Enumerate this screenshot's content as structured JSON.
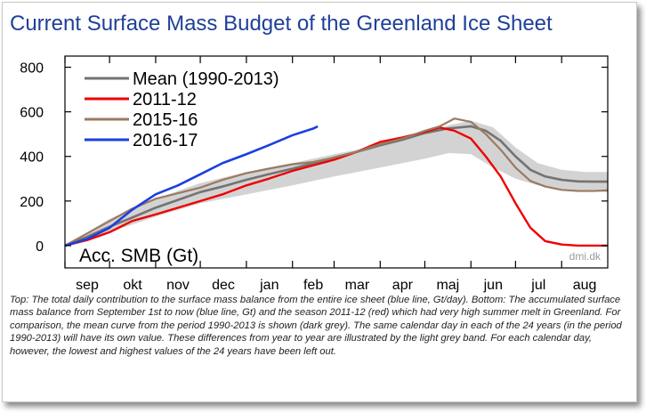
{
  "title": "Current Surface Mass Budget of the Greenland Ice Sheet",
  "caption": "Top: The total daily contribution to the surface mass balance from the entire ice sheet (blue line, Gt/day). Bottom: The accumulated surface mass balance from September 1st to now (blue line, Gt) and the season 2011-12 (red) which had very high summer melt in Greenland. For comparison, the mean curve from the period 1990-2013 is shown (dark grey). The same calendar day in each of the 24 years (in the period 1990-2013) will have its own value. These differences from year to year are illustrated by the light grey band. For each calendar day, however, the lowest and highest values of the 24 years have been left out.",
  "colors": {
    "title": "#1f3f99",
    "mean": "#737373",
    "s2011": "#ee0000",
    "s2015": "#9b7a62",
    "s2016": "#1a3fe0",
    "band": "#d3d3d3"
  },
  "chart_data": {
    "type": "line",
    "ylabel": "Acc. SMB (Gt)",
    "watermark": "dmi.dk",
    "xlim": [
      0,
      365
    ],
    "ylim": [
      -100,
      850
    ],
    "yticks": [
      0,
      200,
      400,
      600,
      800
    ],
    "month_labels": [
      "sep",
      "okt",
      "nov",
      "dec",
      "jan",
      "feb",
      "mar",
      "apr",
      "maj",
      "jun",
      "jul",
      "aug"
    ],
    "month_starts": [
      0,
      30,
      61,
      91,
      122,
      153,
      181,
      212,
      242,
      273,
      303,
      334
    ],
    "legend": [
      "Mean (1990-2013)",
      "2011-12",
      "2015-16",
      "2016-17"
    ],
    "band": {
      "x": [
        0,
        30,
        61,
        91,
        122,
        153,
        181,
        212,
        242,
        258,
        273,
        288,
        303,
        318,
        334,
        350,
        365
      ],
      "lower": [
        0,
        60,
        130,
        190,
        230,
        270,
        310,
        350,
        390,
        415,
        410,
        350,
        300,
        270,
        255,
        245,
        240
      ],
      "upper": [
        0,
        120,
        210,
        280,
        330,
        370,
        410,
        450,
        500,
        540,
        560,
        530,
        440,
        370,
        340,
        330,
        330
      ]
    },
    "series": [
      {
        "name": "Mean (1990-2013)",
        "x": [
          0,
          15,
          30,
          45,
          61,
          76,
          91,
          106,
          122,
          137,
          153,
          167,
          181,
          196,
          212,
          227,
          242,
          257,
          273,
          283,
          293,
          303,
          313,
          323,
          334,
          345,
          356,
          365
        ],
        "y": [
          0,
          40,
          85,
          125,
          170,
          205,
          240,
          265,
          295,
          320,
          345,
          370,
          395,
          420,
          450,
          475,
          505,
          525,
          535,
          515,
          470,
          400,
          340,
          310,
          295,
          288,
          287,
          287
        ]
      },
      {
        "name": "2011-12",
        "x": [
          0,
          15,
          30,
          45,
          61,
          76,
          91,
          106,
          122,
          137,
          153,
          167,
          181,
          196,
          212,
          227,
          242,
          252,
          262,
          273,
          283,
          293,
          303,
          313,
          323,
          334,
          345,
          356,
          365
        ],
        "y": [
          0,
          25,
          60,
          110,
          140,
          170,
          200,
          230,
          270,
          300,
          335,
          360,
          385,
          420,
          465,
          485,
          510,
          530,
          515,
          480,
          400,
          310,
          190,
          80,
          20,
          5,
          0,
          0,
          0
        ]
      },
      {
        "name": "2015-16",
        "x": [
          0,
          15,
          30,
          45,
          61,
          76,
          91,
          106,
          122,
          137,
          153,
          167,
          181,
          196,
          212,
          227,
          242,
          252,
          262,
          273,
          283,
          293,
          303,
          313,
          323,
          334,
          345,
          356,
          365
        ],
        "y": [
          0,
          55,
          110,
          165,
          210,
          235,
          260,
          295,
          325,
          345,
          365,
          375,
          395,
          420,
          455,
          480,
          515,
          535,
          570,
          555,
          500,
          430,
          350,
          290,
          265,
          250,
          245,
          245,
          248
        ]
      },
      {
        "name": "2016-17",
        "x": [
          0,
          15,
          30,
          45,
          61,
          76,
          91,
          106,
          122,
          137,
          153,
          167,
          170
        ],
        "y": [
          0,
          30,
          80,
          160,
          230,
          270,
          320,
          370,
          410,
          450,
          495,
          525,
          535
        ]
      }
    ]
  }
}
